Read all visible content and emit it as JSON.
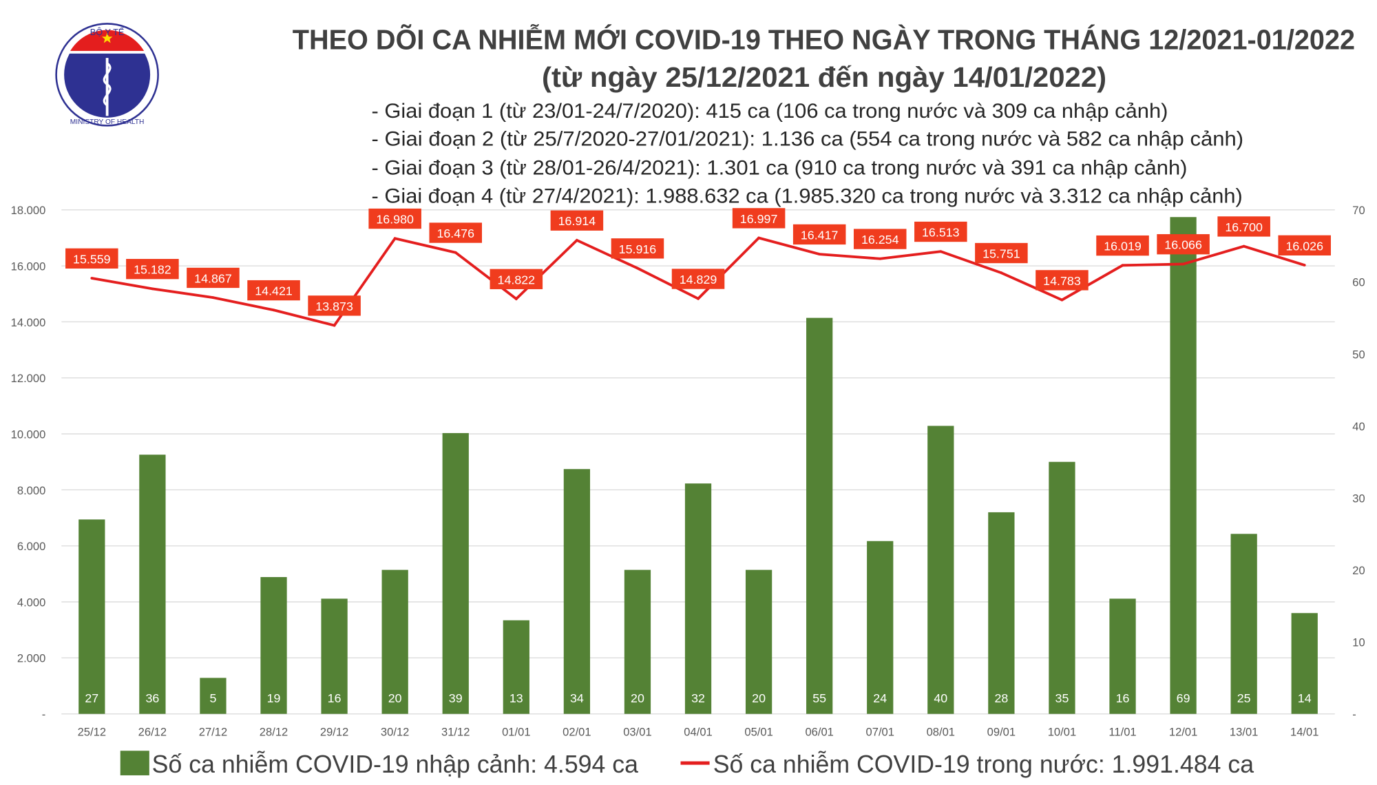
{
  "logo": {
    "top_text": "BỘ Y TẾ",
    "bottom_text": "MINISTRY OF HEALTH"
  },
  "colors": {
    "bar": "#548235",
    "line": "#e41e1e",
    "line_label_bg": "#f03c1e",
    "grid": "#d9d9d9",
    "title": "#404040"
  },
  "chart_data": {
    "type": "bar+line",
    "title": "THEO DÕI CA NHIỄM MỚI COVID-19 THEO NGÀY TRONG THÁNG 12/2021-01/2022",
    "subtitle": "(từ ngày 25/12/2021 đến ngày 14/01/2022)",
    "notes": [
      "- Giai đoạn 1 (từ 23/01-24/7/2020): 415 ca (106 ca trong nước và 309 ca nhập cảnh)",
      "- Giai đoạn 2 (từ 25/7/2020-27/01/2021): 1.136 ca (554 ca trong nước và 582 ca nhập cảnh)",
      "- Giai đoạn 3 (từ 28/01-26/4/2021): 1.301 ca (910 ca trong nước và 391 ca nhập cảnh)",
      "- Giai đoạn 4 (từ 27/4/2021): 1.988.632 ca (1.985.320 ca trong nước và 3.312 ca nhập cảnh)"
    ],
    "categories": [
      "25/12",
      "26/12",
      "27/12",
      "28/12",
      "29/12",
      "30/12",
      "31/12",
      "01/01",
      "02/01",
      "03/01",
      "04/01",
      "05/01",
      "06/01",
      "07/01",
      "08/01",
      "09/01",
      "10/01",
      "11/01",
      "12/01",
      "13/01",
      "14/01"
    ],
    "series": [
      {
        "name": "Số ca nhiễm COVID-19 nhập cảnh: 4.594 ca",
        "type": "bar",
        "axis": "right",
        "values": [
          27,
          36,
          5,
          19,
          16,
          20,
          39,
          13,
          34,
          20,
          32,
          20,
          55,
          24,
          40,
          28,
          35,
          16,
          69,
          25,
          14
        ]
      },
      {
        "name": "Số ca nhiễm COVID-19 trong nước: 1.991.484 ca",
        "type": "line",
        "axis": "left",
        "values": [
          15559,
          15182,
          14867,
          14421,
          13873,
          16980,
          16476,
          14822,
          16914,
          15916,
          14829,
          16997,
          16417,
          16254,
          16513,
          15751,
          14783,
          16019,
          16066,
          16700,
          16026
        ],
        "labels": [
          "15.559",
          "15.182",
          "14.867",
          "14.421",
          "13.873",
          "16.980",
          "16.476",
          "14.822",
          "16.914",
          "15.916",
          "14.829",
          "16.997",
          "16.417",
          "16.254",
          "16.513",
          "15.751",
          "14.783",
          "16.019",
          "16.066",
          "16.700",
          "16.026"
        ]
      }
    ],
    "y_left": {
      "range": [
        0,
        18000
      ],
      "ticks": [
        "-",
        "2.000",
        "4.000",
        "6.000",
        "8.000",
        "10.000",
        "12.000",
        "14.000",
        "16.000",
        "18.000"
      ]
    },
    "y_right": {
      "range": [
        0,
        70
      ],
      "ticks": [
        "-",
        "10",
        "20",
        "30",
        "40",
        "50",
        "60",
        "70"
      ]
    },
    "grid": true,
    "legend_placement": "bottom"
  }
}
